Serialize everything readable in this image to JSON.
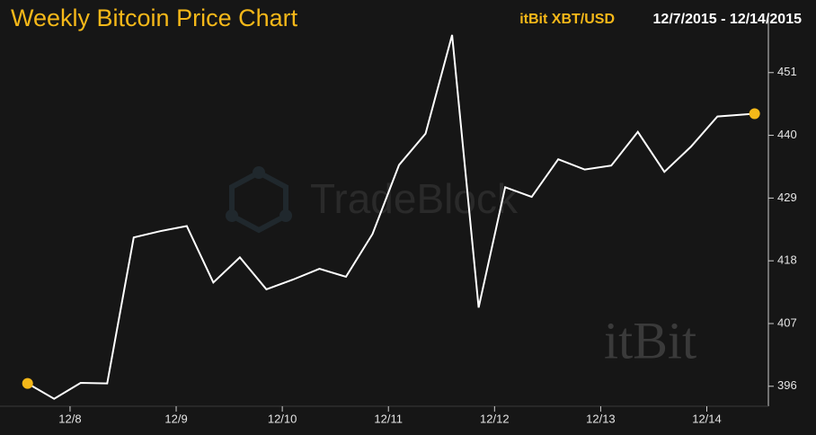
{
  "chart_data": {
    "type": "line",
    "title": "Weekly Bitcoin Price Chart",
    "source": "itBit XBT/USD",
    "date_range": "12/7/2015 - 12/14/2015",
    "watermarks": [
      "TradeBlock",
      "itBit"
    ],
    "x": [
      7.6,
      7.85,
      8.1,
      8.35,
      8.6,
      8.85,
      9.1,
      9.35,
      9.6,
      9.85,
      10.1,
      10.35,
      10.6,
      10.85,
      11.1,
      11.35,
      11.6,
      11.85,
      12.1,
      12.35,
      12.6,
      12.85,
      13.1,
      13.35,
      13.6,
      13.85,
      14.1,
      14.45
    ],
    "series": [
      {
        "name": "XBT/USD",
        "color": "#ffffff",
        "values": [
          396.5,
          393.8,
          396.6,
          396.5,
          422.1,
          423.2,
          424.1,
          414.2,
          418.6,
          413.0,
          414.7,
          416.6,
          415.2,
          422.7,
          434.8,
          440.3,
          457.6,
          409.8,
          430.9,
          429.2,
          435.8,
          434.0,
          434.7,
          440.6,
          433.6,
          438.0,
          443.3,
          443.8
        ]
      }
    ],
    "marker_color": "#f5b819",
    "xlim": [
      7.34,
      14.58
    ],
    "xticks": [
      {
        "value": 8,
        "label": "12/8"
      },
      {
        "value": 9,
        "label": "12/9"
      },
      {
        "value": 10,
        "label": "12/10"
      },
      {
        "value": 11,
        "label": "12/11"
      },
      {
        "value": 12,
        "label": "12/12"
      },
      {
        "value": 13,
        "label": "12/13"
      },
      {
        "value": 14,
        "label": "12/14"
      }
    ],
    "ylim": [
      392.5,
      459
    ],
    "yticks": [
      396,
      407,
      418,
      429,
      440,
      451
    ],
    "grid": false
  }
}
